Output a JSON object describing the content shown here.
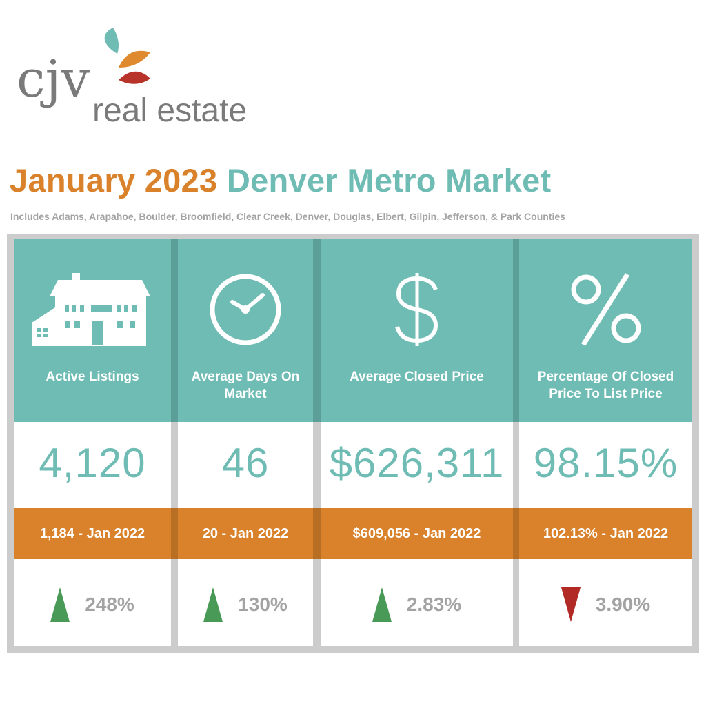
{
  "logo": {
    "brand": "cjv",
    "tagline": "real estate"
  },
  "title": {
    "part1": "January 2023",
    "part2": "Denver Metro Market"
  },
  "subtitle": "Includes Adams, Arapahoe, Boulder, Broomfield, Clear Creek, Denver, Douglas, Elbert, Gilpin, Jefferson, & Park Counties",
  "colors": {
    "teal": "#6fbcb4",
    "orange": "#d9822b",
    "gray": "#a3a3a3",
    "up": "#4a9a57",
    "down": "#b22a25"
  },
  "metrics": [
    {
      "icon": "house-icon",
      "label": "Active Listings",
      "value": "4,120",
      "previous": "1,184 - Jan 2022",
      "direction": "up",
      "change": "248%"
    },
    {
      "icon": "clock-icon",
      "label": "Average Days On Market",
      "value": "46",
      "previous": "20 - Jan 2022",
      "direction": "up",
      "change": "130%"
    },
    {
      "icon": "dollar-icon",
      "label": "Average Closed Price",
      "value": "$626,311",
      "previous": "$609,056 - Jan 2022",
      "direction": "up",
      "change": "2.83%"
    },
    {
      "icon": "percent-icon",
      "label": "Percentage Of Closed Price To List Price",
      "value": "98.15%",
      "previous": "102.13% - Jan 2022",
      "direction": "down",
      "change": "3.90%"
    }
  ]
}
